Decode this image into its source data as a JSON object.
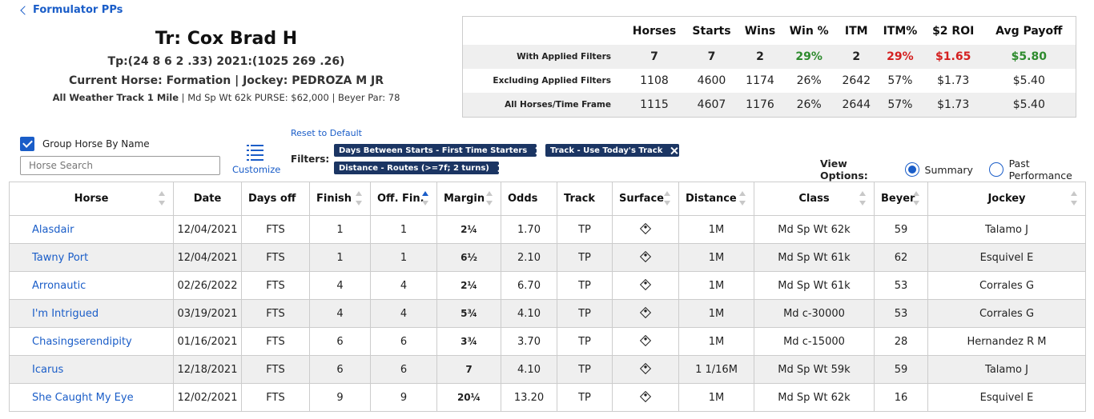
{
  "nav": {
    "back_label": "Formulator PPs"
  },
  "trainer": {
    "title": "Tr: Cox Brad H",
    "stats_line": "Tp:(24 8 6 2 .33) 2021:(1025 269 .26)",
    "horse_line": "Current Horse: Formation | Jockey: PEDROZA M JR",
    "race_bold": "All Weather Track 1 Mile",
    "race_rest": " | Md Sp Wt 62k PURSE: $62,000 | Beyer Par: 78"
  },
  "stats": {
    "headers": [
      "Horses",
      "Starts",
      "Wins",
      "Win %",
      "ITM",
      "ITM%",
      "$2 ROI",
      "Avg Payoff"
    ],
    "rows": [
      {
        "label": "With Applied Filters",
        "values": [
          "7",
          "7",
          "2",
          "29%",
          "2",
          "29%",
          "$1.65",
          "$5.80"
        ]
      },
      {
        "label": "Excluding Applied Filters",
        "values": [
          "1108",
          "4600",
          "1174",
          "26%",
          "2642",
          "57%",
          "$1.73",
          "$5.40"
        ]
      },
      {
        "label": "All Horses/Time Frame",
        "values": [
          "1115",
          "4607",
          "1176",
          "26%",
          "2644",
          "57%",
          "$1.73",
          "$5.40"
        ]
      }
    ],
    "colors": {
      "positive": "#2e8b2e",
      "negative": "#d42020"
    }
  },
  "controls": {
    "group_label": "Group Horse By Name",
    "group_checked": true,
    "search_placeholder": "Horse Search",
    "customize_label": "Customize",
    "reset_label": "Reset to Default",
    "filters_label": "Filters:",
    "chips": [
      "Days Between Starts - First Time Starters",
      "Track - Use Today's Track",
      "Distance - Routes (>=7f; 2 turns)"
    ],
    "view_label": "View Options:",
    "view_options": [
      "Summary",
      "Past Performance"
    ],
    "view_selected": "Summary"
  },
  "table": {
    "columns": [
      "Horse",
      "Date",
      "Days off",
      "Finish",
      "Off. Fin.",
      "Margin",
      "Odds",
      "Track",
      "Surface",
      "Distance",
      "Class",
      "Beyer",
      "Jockey"
    ],
    "active_sort": "Off. Fin.",
    "rows": [
      [
        "Alasdair",
        "12/04/2021",
        "FTS",
        "1",
        "1",
        "2¼",
        "1.70",
        "TP",
        "surface-icon",
        "1M",
        "Md Sp Wt 62k",
        "59",
        "Talamo J"
      ],
      [
        "Tawny Port",
        "12/04/2021",
        "FTS",
        "1",
        "1",
        "6½",
        "2.10",
        "TP",
        "surface-icon",
        "1M",
        "Md Sp Wt 61k",
        "62",
        "Esquivel E"
      ],
      [
        "Arronautic",
        "02/26/2022",
        "FTS",
        "4",
        "4",
        "2¼",
        "6.70",
        "TP",
        "surface-icon",
        "1M",
        "Md Sp Wt 61k",
        "53",
        "Corrales G"
      ],
      [
        "I'm Intrigued",
        "03/19/2021",
        "FTS",
        "4",
        "4",
        "5¾",
        "4.10",
        "TP",
        "surface-icon",
        "1M",
        "Md c-30000",
        "53",
        "Corrales G"
      ],
      [
        "Chasingserendipity",
        "01/16/2021",
        "FTS",
        "6",
        "6",
        "3¾",
        "3.70",
        "TP",
        "surface-icon",
        "1M",
        "Md c-15000",
        "28",
        "Hernandez R M"
      ],
      [
        "Icarus",
        "12/18/2021",
        "FTS",
        "6",
        "6",
        "7",
        "4.10",
        "TP",
        "surface-icon",
        "1 1/16M",
        "Md Sp Wt 59k",
        "59",
        "Talamo J"
      ],
      [
        "She Caught My Eye",
        "12/02/2021",
        "FTS",
        "9",
        "9",
        "20¼",
        "13.20",
        "TP",
        "surface-icon",
        "1M",
        "Md Sp Wt 62k",
        "16",
        "Esquivel E"
      ]
    ]
  }
}
